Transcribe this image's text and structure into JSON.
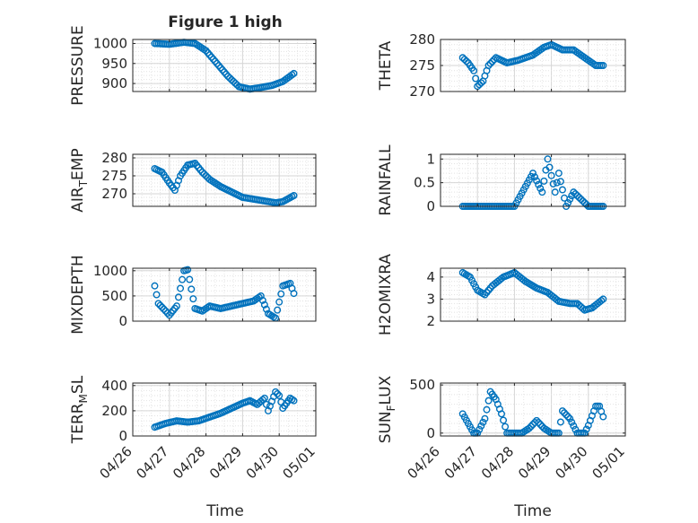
{
  "figure": {
    "title": "Figure 1 high",
    "xlabel": "Time",
    "x_tick_labels": [
      "04/26",
      "04/27",
      "04/28",
      "04/29",
      "04/30",
      "05/01"
    ],
    "marker_color": "#0072BD"
  },
  "chart_data": [
    {
      "type": "scatter",
      "ylabel": "PRESSURE",
      "ylim": [
        880,
        1010
      ],
      "yticks": [
        900,
        950,
        1000
      ],
      "grid": true,
      "x_days": [
        0.6,
        1.0,
        1.4,
        1.7,
        2.0,
        2.3,
        2.6,
        2.9,
        3.2,
        3.5,
        3.8,
        4.1,
        4.4
      ],
      "values": [
        1000,
        998,
        1003,
        1000,
        982,
        950,
        918,
        892,
        886,
        890,
        895,
        905,
        925
      ]
    },
    {
      "type": "scatter",
      "ylabel": "THETA",
      "ylim": [
        270,
        280
      ],
      "yticks": [
        270,
        275,
        280
      ],
      "grid": true,
      "x_days": [
        0.6,
        0.75,
        0.9,
        1.0,
        1.15,
        1.3,
        1.5,
        1.8,
        2.1,
        2.5,
        2.8,
        3.0,
        3.3,
        3.6,
        3.9,
        4.2,
        4.4
      ],
      "values": [
        276.5,
        275.5,
        274,
        271,
        272,
        275,
        276.5,
        275.5,
        276,
        277,
        278.5,
        279,
        278,
        278,
        276.5,
        275,
        275
      ]
    },
    {
      "type": "scatter",
      "ylabel": "AIR_T_EMP",
      "ylim": [
        266.5,
        281
      ],
      "yticks": [
        270,
        275,
        280
      ],
      "grid": true,
      "x_days": [
        0.6,
        0.8,
        1.0,
        1.15,
        1.3,
        1.5,
        1.7,
        1.9,
        2.1,
        2.4,
        2.7,
        3.0,
        3.3,
        3.6,
        3.9,
        4.1,
        4.4
      ],
      "values": [
        277,
        276,
        273,
        271,
        275,
        278,
        278.5,
        276,
        274,
        272,
        270.5,
        269,
        268.5,
        268,
        267.5,
        267.8,
        269.5
      ]
    },
    {
      "type": "scatter",
      "ylabel": "RAINFALL",
      "ylim": [
        0,
        1.1
      ],
      "yticks": [
        0,
        0.5,
        1
      ],
      "grid": true,
      "x_days": [
        0.6,
        1.0,
        1.5,
        2.0,
        2.5,
        2.75,
        2.9,
        3.1,
        3.2,
        3.4,
        3.6,
        4.0,
        4.4
      ],
      "values": [
        0,
        0,
        0,
        0,
        0.7,
        0.3,
        1.0,
        0.3,
        0.7,
        0,
        0.3,
        0,
        0
      ]
    },
    {
      "type": "scatter",
      "ylabel": "MIXDEPTH",
      "ylim": [
        0,
        1050
      ],
      "yticks": [
        0,
        500,
        1000
      ],
      "grid": true,
      "x_days": [
        0.6,
        0.7,
        0.9,
        1.0,
        1.2,
        1.4,
        1.5,
        1.7,
        1.9,
        2.1,
        2.4,
        2.7,
        3.0,
        3.3,
        3.5,
        3.7,
        3.9,
        4.1,
        4.3,
        4.4
      ],
      "values": [
        700,
        350,
        200,
        120,
        300,
        1000,
        1020,
        250,
        200,
        300,
        250,
        300,
        350,
        400,
        500,
        150,
        60,
        700,
        750,
        550
      ]
    },
    {
      "type": "scatter",
      "ylabel": "H2OMIXRA",
      "ylim": [
        2,
        4.4
      ],
      "yticks": [
        2,
        3,
        4
      ],
      "grid": true,
      "x_days": [
        0.6,
        0.8,
        1.0,
        1.2,
        1.4,
        1.7,
        2.0,
        2.3,
        2.6,
        2.9,
        3.2,
        3.5,
        3.7,
        3.9,
        4.1,
        4.4
      ],
      "values": [
        4.2,
        4.0,
        3.4,
        3.2,
        3.6,
        4.0,
        4.2,
        3.8,
        3.5,
        3.3,
        2.9,
        2.8,
        2.8,
        2.5,
        2.6,
        3.0
      ]
    },
    {
      "type": "scatter",
      "ylabel": "TERR_M_SL",
      "ylim": [
        0,
        420
      ],
      "yticks": [
        0,
        200,
        400
      ],
      "grid": true,
      "x_days": [
        0.6,
        0.9,
        1.2,
        1.5,
        1.8,
        2.1,
        2.4,
        2.7,
        3.0,
        3.2,
        3.4,
        3.6,
        3.7,
        3.9,
        4.0,
        4.1,
        4.3,
        4.4
      ],
      "values": [
        70,
        100,
        120,
        110,
        120,
        150,
        180,
        220,
        260,
        280,
        250,
        300,
        200,
        350,
        320,
        220,
        300,
        280
      ]
    },
    {
      "type": "scatter",
      "ylabel": "SUN_F_LUX",
      "ylim": [
        -30,
        520
      ],
      "yticks": [
        0,
        500
      ],
      "grid": true,
      "x_days": [
        0.6,
        0.75,
        0.9,
        1.0,
        1.2,
        1.35,
        1.5,
        1.65,
        1.8,
        2.0,
        2.2,
        2.4,
        2.6,
        2.8,
        3.0,
        3.2,
        3.3,
        3.5,
        3.7,
        3.9,
        4.0,
        4.2,
        4.3,
        4.4
      ],
      "values": [
        200,
        100,
        0,
        0,
        150,
        430,
        350,
        200,
        0,
        0,
        0,
        50,
        130,
        50,
        0,
        0,
        230,
        150,
        0,
        0,
        80,
        280,
        280,
        170
      ]
    }
  ]
}
